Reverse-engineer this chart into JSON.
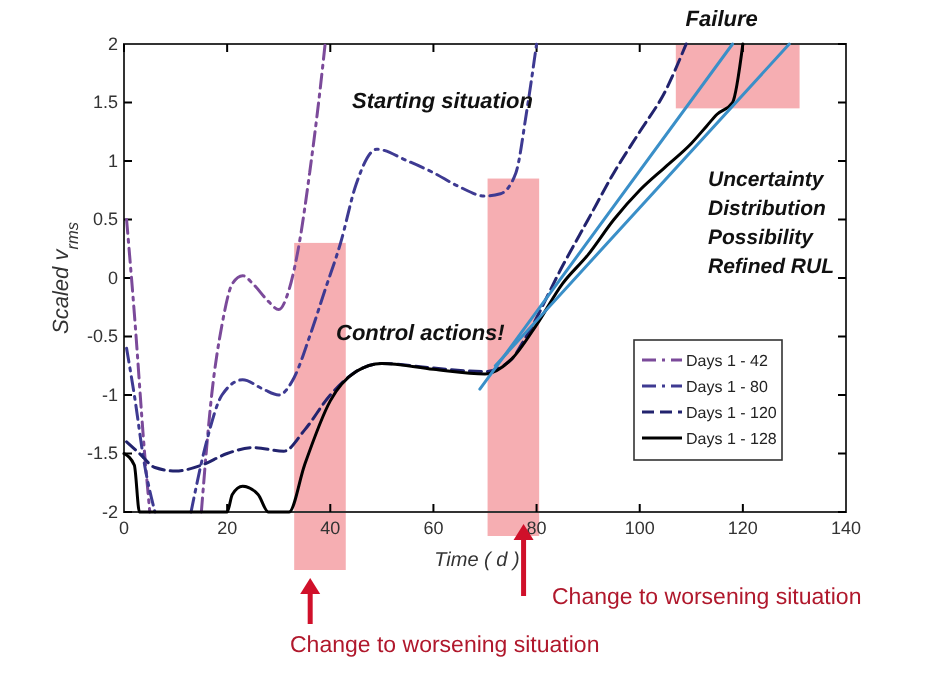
{
  "chart_data": {
    "type": "line",
    "xlabel": "Time ( d )",
    "ylabel": "Scaled v$_{rms}$",
    "xlim": [
      0,
      140
    ],
    "ylim": [
      -2,
      2
    ],
    "xticks": [
      0,
      20,
      40,
      60,
      80,
      100,
      120,
      140
    ],
    "yticks": [
      -2,
      -1.5,
      -1,
      -0.5,
      0,
      0.5,
      1,
      1.5,
      2
    ],
    "tick_labels": true,
    "legend": "right",
    "grid": false,
    "series": [
      {
        "name": "Days 1 - 42",
        "color": "#7b4a9a",
        "line_style": "dashdot",
        "x": [
          0.5,
          2,
          4,
          5,
          10,
          15,
          17,
          19,
          21,
          23,
          25,
          28,
          30,
          32,
          34,
          36,
          38,
          39
        ],
        "values": [
          0.5,
          -0.3,
          -1.5,
          -2,
          null,
          -2,
          -1,
          -0.4,
          -0.05,
          0.02,
          -0.05,
          -0.2,
          -0.27,
          -0.1,
          0.3,
          0.9,
          1.6,
          2
        ]
      },
      {
        "name": "Days 1 - 80",
        "color": "#3e3a92",
        "line_style": "dashdot",
        "x": [
          0.5,
          2,
          4,
          6,
          10,
          13,
          16,
          19,
          23,
          27,
          30,
          33,
          36,
          39,
          42,
          45,
          49,
          55,
          60,
          65,
          70,
          73,
          76,
          78,
          80
        ],
        "values": [
          -0.6,
          -1.0,
          -1.6,
          -2,
          null,
          -2,
          -1.4,
          -1.0,
          -0.87,
          -0.95,
          -1.0,
          -0.85,
          -0.5,
          -0.1,
          0.3,
          0.8,
          1.1,
          1.0,
          0.9,
          0.78,
          0.7,
          0.72,
          0.9,
          1.4,
          2
        ]
      },
      {
        "name": "Days 1 - 120",
        "color": "#22236e",
        "line_style": "dashed",
        "x": [
          0.5,
          3,
          6,
          10,
          15,
          20,
          25,
          31,
          35,
          40,
          45,
          50,
          60,
          70,
          75,
          78,
          85,
          90,
          95,
          100,
          105,
          109
        ],
        "values": [
          -1.4,
          -1.5,
          -1.62,
          -1.65,
          -1.6,
          -1.5,
          -1.45,
          -1.48,
          -1.3,
          -1.0,
          -0.8,
          -0.73,
          -0.77,
          -0.8,
          -0.7,
          -0.5,
          0.1,
          0.5,
          0.9,
          1.25,
          1.6,
          2
        ]
      },
      {
        "name": "Days 1 - 128",
        "color": "#000000",
        "line_style": "solid",
        "x": [
          0,
          2,
          3,
          10,
          20,
          21,
          23,
          26,
          28,
          32,
          35,
          40,
          45,
          50,
          60,
          70,
          75,
          80,
          85,
          90,
          95,
          100,
          105,
          110,
          113,
          115,
          118,
          120
        ],
        "values": [
          -1.5,
          -1.6,
          -2,
          -2,
          -2,
          -1.85,
          -1.78,
          -1.85,
          -2,
          -2,
          -1.6,
          -1.05,
          -0.8,
          -0.73,
          -0.78,
          -0.82,
          -0.7,
          -0.4,
          -0.05,
          0.2,
          0.5,
          0.75,
          0.95,
          1.15,
          1.3,
          1.4,
          1.5,
          2
        ]
      },
      {
        "color": "#3a8fc8",
        "line_style": "solid",
        "x": [
          69,
          118
        ],
        "values": [
          -0.95,
          2
        ]
      },
      {
        "color": "#3a8fc8",
        "line_style": "solid",
        "x": [
          72,
          129
        ],
        "values": [
          -0.75,
          2
        ]
      }
    ],
    "bands": [
      {
        "axis": "x",
        "from": 33,
        "to": 43,
        "label": "Change to worsening situation",
        "color": "#f4a0a4"
      },
      {
        "axis": "x",
        "from": 70.5,
        "to": 80.5,
        "label": "Change to worsening situation",
        "color": "#f4a0a4"
      },
      {
        "axis": "x",
        "from": 107,
        "to": 131,
        "label": "Failure",
        "color": "#f4a0a4"
      }
    ],
    "annotations": [
      "Starting situation",
      "Control actions!",
      "Uncertainty\nDistribution\nPossibility\nRefined RUL"
    ]
  }
}
